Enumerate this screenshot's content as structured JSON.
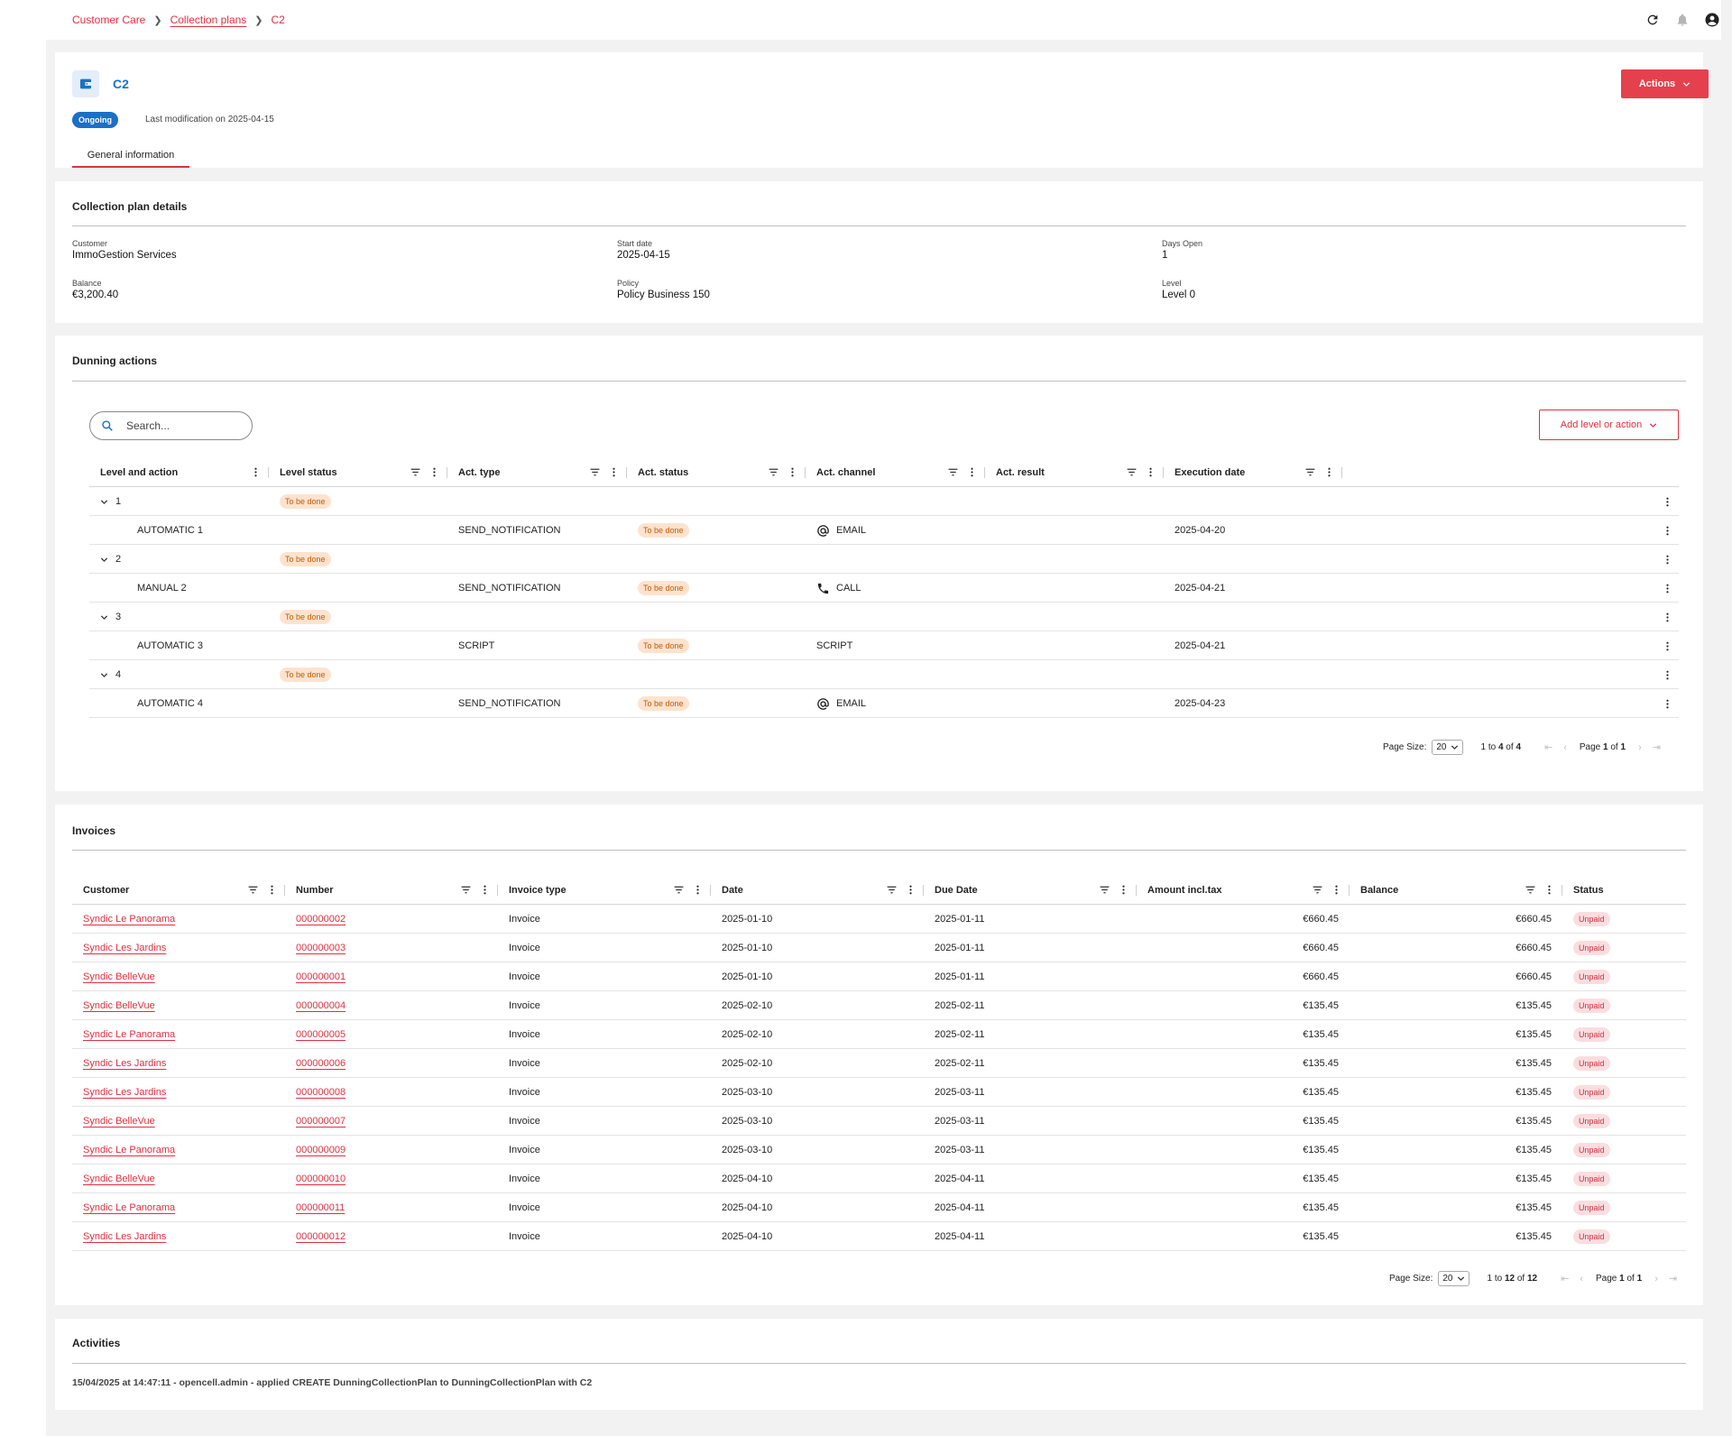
{
  "breadcrumb": {
    "items": [
      "Customer Care",
      "Collection plans",
      "C2"
    ]
  },
  "header": {
    "title": "C2",
    "status": "Ongoing",
    "last_modification": "Last modification on 2025-04-15",
    "actions_label": "Actions",
    "tabs": [
      "General information"
    ]
  },
  "details": {
    "title": "Collection plan details",
    "fields": [
      {
        "label": "Customer",
        "value": "ImmoGestion Services"
      },
      {
        "label": "Start date",
        "value": "2025-04-15"
      },
      {
        "label": "Days Open",
        "value": "1"
      },
      {
        "label": "Balance",
        "value": "€3,200.40"
      },
      {
        "label": "Policy",
        "value": "Policy Business 150"
      },
      {
        "label": "Level",
        "value": "Level 0"
      }
    ]
  },
  "dunning": {
    "title": "Dunning actions",
    "search_placeholder": "Search...",
    "add_label": "Add level or action",
    "columns": [
      "Level and action",
      "Level status",
      "Act. type",
      "Act. status",
      "Act. channel",
      "Act. result",
      "Execution date"
    ],
    "rows": [
      {
        "kind": "level",
        "name": "1",
        "level_status": "To be done"
      },
      {
        "kind": "action",
        "name": "AUTOMATIC 1",
        "type": "SEND_NOTIFICATION",
        "status": "To be done",
        "channel": "EMAIL",
        "channel_icon": "at-icon",
        "result": "",
        "date": "2025-04-20"
      },
      {
        "kind": "level",
        "name": "2",
        "level_status": "To be done"
      },
      {
        "kind": "action",
        "name": "MANUAL 2",
        "type": "SEND_NOTIFICATION",
        "status": "To be done",
        "channel": "CALL",
        "channel_icon": "phone-icon",
        "result": "",
        "date": "2025-04-21"
      },
      {
        "kind": "level",
        "name": "3",
        "level_status": "To be done"
      },
      {
        "kind": "action",
        "name": "AUTOMATIC 3",
        "type": "SCRIPT",
        "status": "To be done",
        "channel": "SCRIPT",
        "channel_icon": "",
        "result": "",
        "date": "2025-04-21"
      },
      {
        "kind": "level",
        "name": "4",
        "level_status": "To be done"
      },
      {
        "kind": "action",
        "name": "AUTOMATIC 4",
        "type": "SEND_NOTIFICATION",
        "status": "To be done",
        "channel": "EMAIL",
        "channel_icon": "at-icon",
        "result": "",
        "date": "2025-04-23"
      }
    ],
    "pager": {
      "page_size_label": "Page Size:",
      "page_size": "20",
      "range_from": "1",
      "range_to": "4",
      "total": "4",
      "page": "1",
      "pages": "1"
    }
  },
  "invoices": {
    "title": "Invoices",
    "columns": [
      "Customer",
      "Number",
      "Invoice type",
      "Date",
      "Due Date",
      "Amount incl.tax",
      "Balance",
      "Status"
    ],
    "rows": [
      [
        "Syndic Le Panorama",
        "000000002",
        "Invoice",
        "2025-01-10",
        "2025-01-11",
        "€660.45",
        "€660.45",
        "Unpaid"
      ],
      [
        "Syndic Les Jardins",
        "000000003",
        "Invoice",
        "2025-01-10",
        "2025-01-11",
        "€660.45",
        "€660.45",
        "Unpaid"
      ],
      [
        "Syndic BelleVue",
        "000000001",
        "Invoice",
        "2025-01-10",
        "2025-01-11",
        "€660.45",
        "€660.45",
        "Unpaid"
      ],
      [
        "Syndic BelleVue",
        "000000004",
        "Invoice",
        "2025-02-10",
        "2025-02-11",
        "€135.45",
        "€135.45",
        "Unpaid"
      ],
      [
        "Syndic Le Panorama",
        "000000005",
        "Invoice",
        "2025-02-10",
        "2025-02-11",
        "€135.45",
        "€135.45",
        "Unpaid"
      ],
      [
        "Syndic Les Jardins",
        "000000006",
        "Invoice",
        "2025-02-10",
        "2025-02-11",
        "€135.45",
        "€135.45",
        "Unpaid"
      ],
      [
        "Syndic Les Jardins",
        "000000008",
        "Invoice",
        "2025-03-10",
        "2025-03-11",
        "€135.45",
        "€135.45",
        "Unpaid"
      ],
      [
        "Syndic BelleVue",
        "000000007",
        "Invoice",
        "2025-03-10",
        "2025-03-11",
        "€135.45",
        "€135.45",
        "Unpaid"
      ],
      [
        "Syndic Le Panorama",
        "000000009",
        "Invoice",
        "2025-03-10",
        "2025-03-11",
        "€135.45",
        "€135.45",
        "Unpaid"
      ],
      [
        "Syndic BelleVue",
        "000000010",
        "Invoice",
        "2025-04-10",
        "2025-04-11",
        "€135.45",
        "€135.45",
        "Unpaid"
      ],
      [
        "Syndic Le Panorama",
        "000000011",
        "Invoice",
        "2025-04-10",
        "2025-04-11",
        "€135.45",
        "€135.45",
        "Unpaid"
      ],
      [
        "Syndic Les Jardins",
        "000000012",
        "Invoice",
        "2025-04-10",
        "2025-04-11",
        "€135.45",
        "€135.45",
        "Unpaid"
      ]
    ],
    "pager": {
      "page_size_label": "Page Size:",
      "page_size": "20",
      "range_from": "1",
      "range_to": "12",
      "total": "12",
      "page": "1",
      "pages": "1"
    }
  },
  "activities": {
    "title": "Activities",
    "items": [
      "15/04/2025 at 14:47:11 - opencell.admin - applied CREATE DunningCollectionPlan to DunningCollectionPlan with C2"
    ]
  },
  "colors": {
    "accent": "#e0303f",
    "primary": "#1b6fc8",
    "todo_bg": "#fde3cf",
    "unpaid_bg": "#fbdde0",
    "page_bg": "#f2f2f2"
  }
}
